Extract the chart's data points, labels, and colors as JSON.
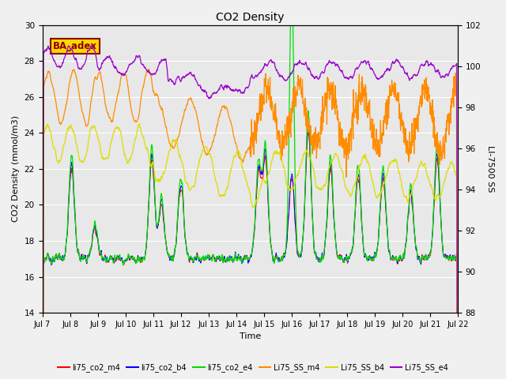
{
  "title": "CO2 Density",
  "xlabel": "Time",
  "ylabel_left": "CO2 Density (mmol/m3)",
  "ylabel_right": "LI-7500 SS",
  "ylim_left": [
    14,
    30
  ],
  "ylim_right": [
    88,
    102
  ],
  "annotation_text": "BA_adex",
  "annotation_color": "#8B0000",
  "annotation_bg": "#FFD700",
  "xtick_labels": [
    "Jul 7",
    "Jul 8",
    "Jul 9",
    "Jul 10",
    "Jul 11",
    "Jul 12",
    "Jul 13",
    "Jul 14",
    "Jul 15",
    "Jul 16",
    "Jul 17",
    "Jul 18",
    "Jul 19",
    "Jul 20",
    "Jul 21",
    "Jul 22"
  ],
  "legend_entries": [
    {
      "label": "li75_co2_m4",
      "color": "#FF0000"
    },
    {
      "label": "li75_co2_b4",
      "color": "#0000FF"
    },
    {
      "label": "li75_co2_e4",
      "color": "#00DD00"
    },
    {
      "label": "Li75_SS_m4",
      "color": "#FF8C00"
    },
    {
      "label": "Li75_SS_b4",
      "color": "#DDDD00"
    },
    {
      "label": "Li75_SS_e4",
      "color": "#9900CC"
    }
  ],
  "yticks_left": [
    14,
    16,
    18,
    20,
    22,
    24,
    26,
    28,
    30
  ],
  "yticks_right": [
    88,
    90,
    92,
    94,
    96,
    98,
    100,
    102
  ],
  "bg_color": "#E8E8E8",
  "fig_bg_color": "#F0F0F0",
  "grid_color": "#FFFFFF"
}
